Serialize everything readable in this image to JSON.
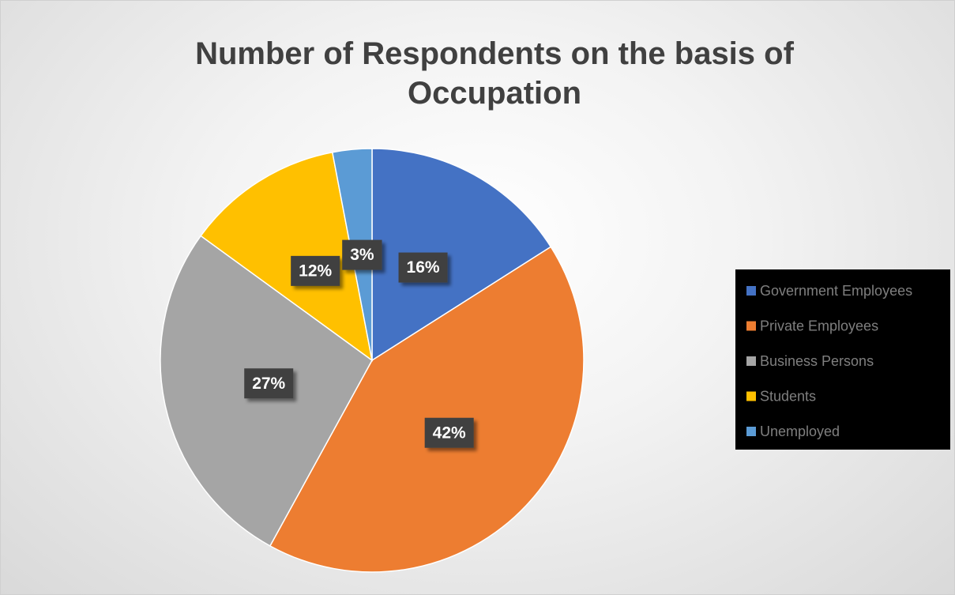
{
  "chart_data": {
    "type": "pie",
    "title": "Number of Respondents on the basis of Occupation",
    "categories": [
      "Government Employees",
      "Private Employees",
      "Business Persons",
      "Students",
      "Unemployed"
    ],
    "values": [
      16,
      42,
      27,
      12,
      3
    ],
    "value_labels": [
      "16%",
      "42%",
      "27%",
      "12%",
      "3%"
    ],
    "colors": [
      "#4472c4",
      "#ed7d31",
      "#a5a5a5",
      "#ffc000",
      "#5b9bd5"
    ],
    "legend": "right"
  }
}
